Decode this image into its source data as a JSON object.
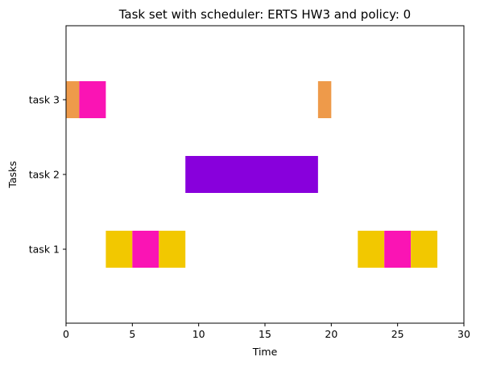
{
  "chart_data": {
    "type": "bar",
    "orientation": "horizontal-gantt",
    "title": "Task set with scheduler: ERTS HW3 and policy: 0",
    "xlabel": "Time",
    "ylabel": "Tasks",
    "xlim": [
      0,
      30
    ],
    "xticks": [
      0,
      5,
      10,
      15,
      20,
      25,
      30
    ],
    "categories": [
      "task 1",
      "task 2",
      "task 3"
    ],
    "grid": false,
    "colors": {
      "yellow": "#f2c800",
      "magenta": "#fa14b4",
      "purple": "#8800dc",
      "orange": "#ee9a4a"
    },
    "segments": [
      {
        "task": "task 3",
        "start": 0,
        "end": 1,
        "color": "#ee9a4a"
      },
      {
        "task": "task 3",
        "start": 1,
        "end": 3,
        "color": "#fa14b4"
      },
      {
        "task": "task 3",
        "start": 19,
        "end": 20,
        "color": "#ee9a4a"
      },
      {
        "task": "task 2",
        "start": 9,
        "end": 19,
        "color": "#8800dc"
      },
      {
        "task": "task 1",
        "start": 3,
        "end": 5,
        "color": "#f2c800"
      },
      {
        "task": "task 1",
        "start": 5,
        "end": 7,
        "color": "#fa14b4"
      },
      {
        "task": "task 1",
        "start": 7,
        "end": 9,
        "color": "#f2c800"
      },
      {
        "task": "task 1",
        "start": 22,
        "end": 24,
        "color": "#f2c800"
      },
      {
        "task": "task 1",
        "start": 24,
        "end": 26,
        "color": "#fa14b4"
      },
      {
        "task": "task 1",
        "start": 26,
        "end": 28,
        "color": "#f2c800"
      }
    ]
  }
}
